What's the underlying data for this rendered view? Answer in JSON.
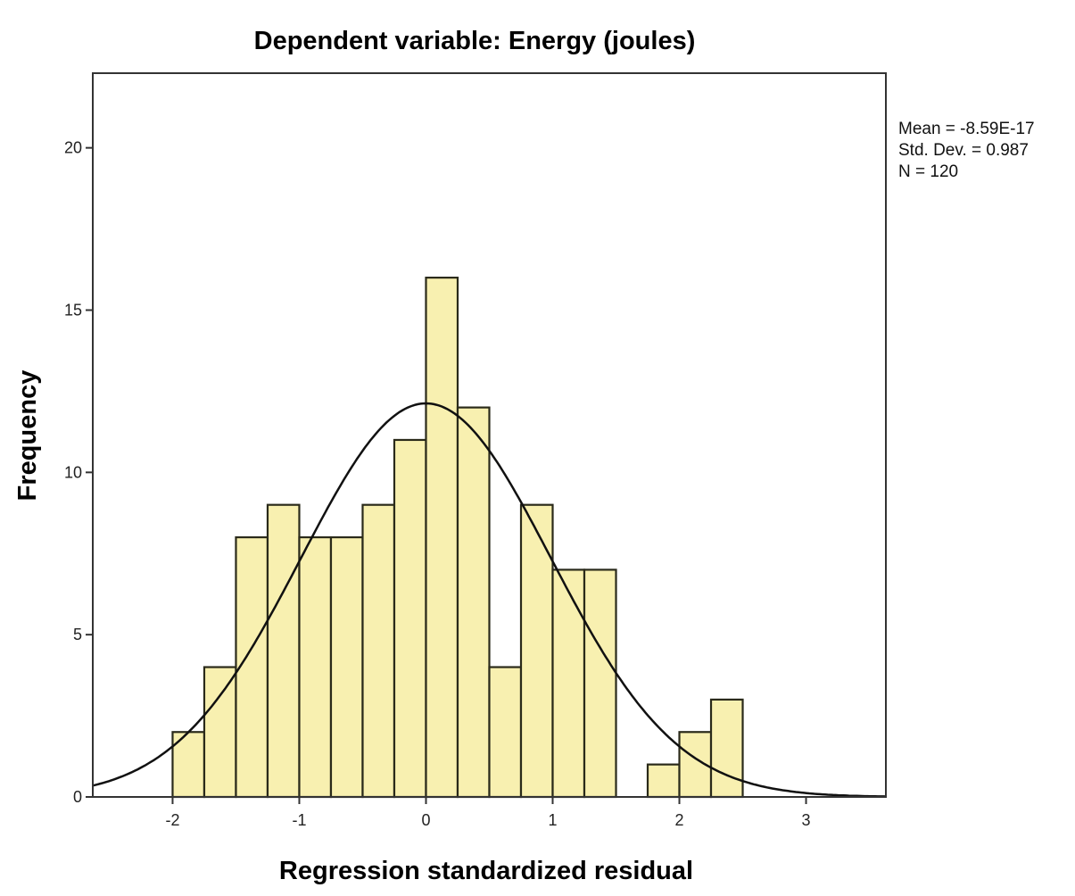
{
  "chart_data": {
    "type": "bar",
    "subtype": "histogram",
    "title": "Dependent variable: Energy (joules)",
    "xlabel": "Regression standardized residual",
    "ylabel": "Frequency",
    "xlim": [
      -2.63,
      3.63
    ],
    "ylim": [
      0,
      22.3
    ],
    "xticks": [
      -2,
      -1,
      0,
      1,
      2,
      3
    ],
    "yticks": [
      0,
      5,
      10,
      15,
      20
    ],
    "bin_width": 0.25,
    "bin_starts": [
      -2,
      -1.75,
      -1.5,
      -1.25,
      -1,
      -0.75,
      -0.5,
      -0.25,
      0,
      0.25,
      0.5,
      0.75,
      1,
      1.25,
      1.5,
      1.75,
      2,
      2.25
    ],
    "values": [
      2,
      4,
      8,
      9,
      8,
      8,
      9,
      11,
      16,
      12,
      4,
      9,
      7,
      7,
      0,
      1,
      2,
      3
    ],
    "bar_color": "#f8f0b0",
    "normal_curve": {
      "mean": -8.59e-17,
      "std": 0.987,
      "n": 120
    },
    "grid": false,
    "legend_placement": "right",
    "stats": [
      "Mean = -8.59E-17",
      "Std. Dev. = 0.987",
      "N = 120"
    ]
  }
}
